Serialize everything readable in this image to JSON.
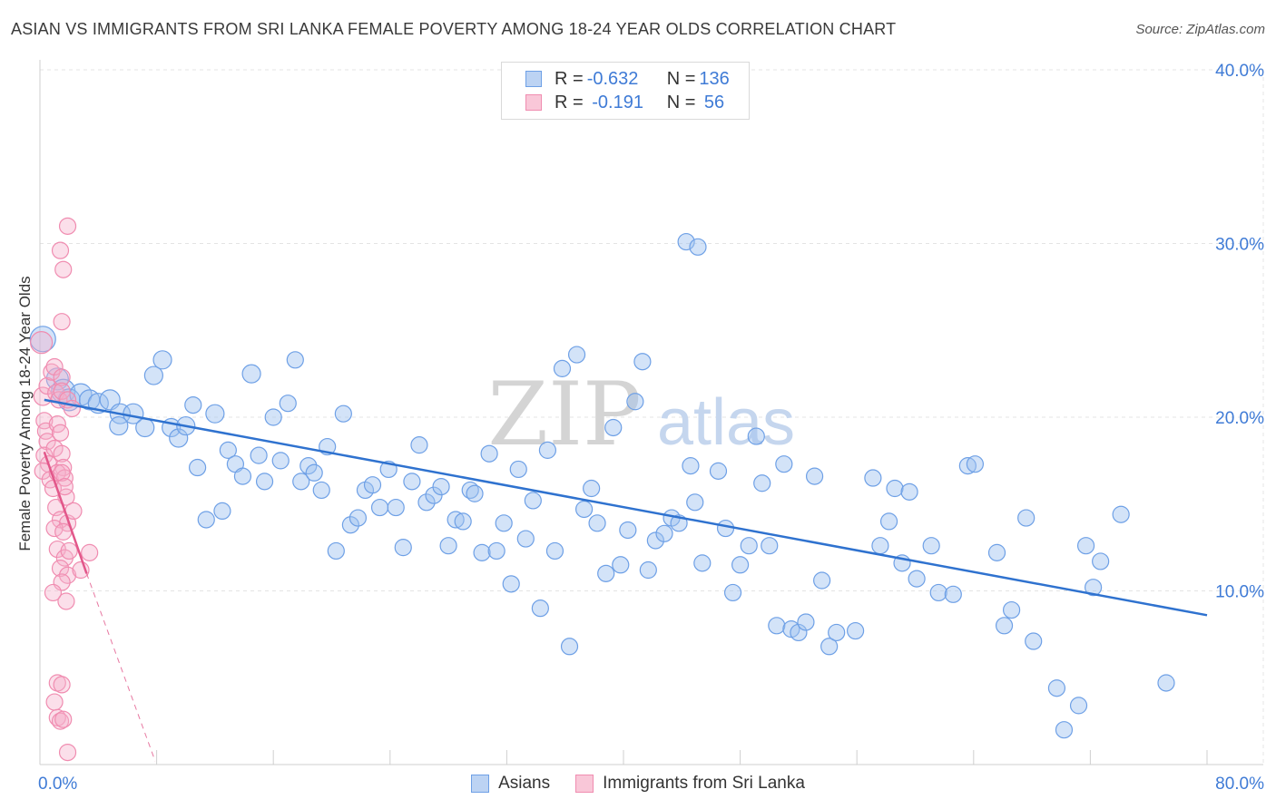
{
  "title": "ASIAN VS IMMIGRANTS FROM SRI LANKA FEMALE POVERTY AMONG 18-24 YEAR OLDS CORRELATION CHART",
  "source": "Source: ZipAtlas.com",
  "watermark": {
    "zip": "ZIP",
    "atlas": "atlas"
  },
  "legend": {
    "rows": [
      {
        "r_label": "R = ",
        "r_value": "-0.632",
        "n_label": "N = ",
        "n_value": "136"
      },
      {
        "r_label": "R = ",
        "r_value": " -0.191",
        "n_label": "N = ",
        "n_value": " 56"
      }
    ]
  },
  "chart_data": {
    "type": "scatter",
    "title": "ASIAN VS IMMIGRANTS FROM SRI LANKA FEMALE POVERTY AMONG 18-24 YEAR OLDS CORRELATION CHART",
    "xlabel": "",
    "ylabel": "Female Poverty Among 18-24 Year Olds",
    "xlim": [
      0,
      80
    ],
    "ylim": [
      0,
      40
    ],
    "x_tick_labels": [
      "0.0%",
      "80.0%"
    ],
    "y_tick_labels": [
      "10.0%",
      "20.0%",
      "30.0%",
      "40.0%"
    ],
    "y_ticks": [
      10,
      20,
      30,
      40
    ],
    "grid": true,
    "legend_position": "top-center",
    "colors": {
      "asians": "#6ea0e6",
      "sri_lanka": "#f08cb0",
      "asians_line": "#2f72cf",
      "sri_lanka_line": "#e2578a"
    },
    "series": [
      {
        "name": "Asians",
        "trend": {
          "x": [
            0.3,
            80
          ],
          "y": [
            21.0,
            8.6
          ]
        },
        "points": [
          {
            "x": 0.2,
            "y": 24.5,
            "s": 14
          },
          {
            "x": 1.2,
            "y": 22.2,
            "s": 12
          },
          {
            "x": 1.6,
            "y": 21.5,
            "s": 13
          },
          {
            "x": 2.0,
            "y": 21.0,
            "s": 12
          },
          {
            "x": 2.8,
            "y": 21.3,
            "s": 12
          },
          {
            "x": 3.4,
            "y": 21.0,
            "s": 11
          },
          {
            "x": 4.0,
            "y": 20.8,
            "s": 11
          },
          {
            "x": 4.8,
            "y": 21.0,
            "s": 11
          },
          {
            "x": 5.5,
            "y": 20.2,
            "s": 11
          },
          {
            "x": 6.4,
            "y": 20.2,
            "s": 11
          },
          {
            "x": 5.4,
            "y": 19.5,
            "s": 10
          },
          {
            "x": 7.2,
            "y": 19.4,
            "s": 10
          },
          {
            "x": 7.8,
            "y": 22.4,
            "s": 10
          },
          {
            "x": 8.4,
            "y": 23.3,
            "s": 10
          },
          {
            "x": 9.0,
            "y": 19.4,
            "s": 10
          },
          {
            "x": 9.5,
            "y": 18.8,
            "s": 10
          },
          {
            "x": 10.0,
            "y": 19.5,
            "s": 10
          },
          {
            "x": 10.5,
            "y": 20.7,
            "s": 9
          },
          {
            "x": 10.8,
            "y": 17.1,
            "s": 9
          },
          {
            "x": 11.4,
            "y": 14.1,
            "s": 9
          },
          {
            "x": 12.0,
            "y": 20.2,
            "s": 10
          },
          {
            "x": 12.5,
            "y": 14.6,
            "s": 9
          },
          {
            "x": 12.9,
            "y": 18.1,
            "s": 9
          },
          {
            "x": 13.4,
            "y": 17.3,
            "s": 9
          },
          {
            "x": 13.9,
            "y": 16.6,
            "s": 9
          },
          {
            "x": 14.5,
            "y": 22.5,
            "s": 10
          },
          {
            "x": 15.0,
            "y": 17.8,
            "s": 9
          },
          {
            "x": 15.4,
            "y": 16.3,
            "s": 9
          },
          {
            "x": 16.0,
            "y": 20.0,
            "s": 9
          },
          {
            "x": 16.5,
            "y": 17.5,
            "s": 9
          },
          {
            "x": 17.0,
            "y": 20.8,
            "s": 9
          },
          {
            "x": 17.5,
            "y": 23.3,
            "s": 9
          },
          {
            "x": 17.9,
            "y": 16.3,
            "s": 9
          },
          {
            "x": 18.4,
            "y": 17.2,
            "s": 9
          },
          {
            "x": 18.8,
            "y": 16.8,
            "s": 9
          },
          {
            "x": 19.3,
            "y": 15.8,
            "s": 9
          },
          {
            "x": 19.7,
            "y": 18.3,
            "s": 9
          },
          {
            "x": 20.3,
            "y": 12.3,
            "s": 9
          },
          {
            "x": 20.8,
            "y": 20.2,
            "s": 9
          },
          {
            "x": 21.3,
            "y": 13.8,
            "s": 9
          },
          {
            "x": 21.8,
            "y": 14.2,
            "s": 9
          },
          {
            "x": 22.3,
            "y": 15.8,
            "s": 9
          },
          {
            "x": 22.8,
            "y": 16.1,
            "s": 9
          },
          {
            "x": 23.3,
            "y": 14.8,
            "s": 9
          },
          {
            "x": 23.9,
            "y": 17.0,
            "s": 9
          },
          {
            "x": 24.4,
            "y": 14.8,
            "s": 9
          },
          {
            "x": 24.9,
            "y": 12.5,
            "s": 9
          },
          {
            "x": 25.5,
            "y": 16.3,
            "s": 9
          },
          {
            "x": 26.0,
            "y": 18.4,
            "s": 9
          },
          {
            "x": 26.5,
            "y": 15.1,
            "s": 9
          },
          {
            "x": 27.0,
            "y": 15.5,
            "s": 9
          },
          {
            "x": 27.5,
            "y": 16.0,
            "s": 9
          },
          {
            "x": 28.0,
            "y": 12.6,
            "s": 9
          },
          {
            "x": 28.5,
            "y": 14.1,
            "s": 9
          },
          {
            "x": 29.0,
            "y": 14.0,
            "s": 9
          },
          {
            "x": 29.5,
            "y": 15.8,
            "s": 9
          },
          {
            "x": 29.8,
            "y": 15.6,
            "s": 9
          },
          {
            "x": 30.3,
            "y": 12.2,
            "s": 9
          },
          {
            "x": 30.8,
            "y": 17.9,
            "s": 9
          },
          {
            "x": 31.3,
            "y": 12.3,
            "s": 9
          },
          {
            "x": 31.8,
            "y": 13.9,
            "s": 9
          },
          {
            "x": 32.3,
            "y": 10.4,
            "s": 9
          },
          {
            "x": 32.8,
            "y": 17.0,
            "s": 9
          },
          {
            "x": 33.3,
            "y": 13.0,
            "s": 9
          },
          {
            "x": 33.8,
            "y": 15.2,
            "s": 9
          },
          {
            "x": 34.3,
            "y": 9.0,
            "s": 9
          },
          {
            "x": 34.8,
            "y": 18.1,
            "s": 9
          },
          {
            "x": 35.3,
            "y": 12.3,
            "s": 9
          },
          {
            "x": 35.8,
            "y": 22.8,
            "s": 9
          },
          {
            "x": 36.3,
            "y": 6.8,
            "s": 9
          },
          {
            "x": 36.8,
            "y": 23.6,
            "s": 9
          },
          {
            "x": 37.3,
            "y": 14.7,
            "s": 9
          },
          {
            "x": 37.8,
            "y": 15.9,
            "s": 9
          },
          {
            "x": 38.2,
            "y": 13.9,
            "s": 9
          },
          {
            "x": 38.8,
            "y": 11.0,
            "s": 9
          },
          {
            "x": 39.3,
            "y": 19.4,
            "s": 9
          },
          {
            "x": 39.8,
            "y": 11.5,
            "s": 9
          },
          {
            "x": 40.3,
            "y": 13.5,
            "s": 9
          },
          {
            "x": 40.8,
            "y": 20.9,
            "s": 9
          },
          {
            "x": 41.3,
            "y": 23.2,
            "s": 9
          },
          {
            "x": 41.7,
            "y": 11.2,
            "s": 9
          },
          {
            "x": 42.2,
            "y": 12.9,
            "s": 9
          },
          {
            "x": 42.8,
            "y": 13.3,
            "s": 9
          },
          {
            "x": 43.3,
            "y": 14.2,
            "s": 9
          },
          {
            "x": 43.8,
            "y": 13.9,
            "s": 9
          },
          {
            "x": 44.3,
            "y": 30.1,
            "s": 9
          },
          {
            "x": 45.1,
            "y": 29.8,
            "s": 9
          },
          {
            "x": 44.6,
            "y": 17.2,
            "s": 9
          },
          {
            "x": 44.9,
            "y": 15.1,
            "s": 9
          },
          {
            "x": 45.4,
            "y": 11.6,
            "s": 9
          },
          {
            "x": 46.5,
            "y": 16.9,
            "s": 9
          },
          {
            "x": 47.0,
            "y": 13.6,
            "s": 9
          },
          {
            "x": 47.5,
            "y": 9.9,
            "s": 9
          },
          {
            "x": 48.0,
            "y": 11.5,
            "s": 9
          },
          {
            "x": 48.6,
            "y": 12.6,
            "s": 9
          },
          {
            "x": 49.1,
            "y": 18.9,
            "s": 9
          },
          {
            "x": 49.5,
            "y": 16.2,
            "s": 9
          },
          {
            "x": 50.0,
            "y": 12.6,
            "s": 9
          },
          {
            "x": 50.5,
            "y": 8.0,
            "s": 9
          },
          {
            "x": 51.0,
            "y": 17.3,
            "s": 9
          },
          {
            "x": 51.5,
            "y": 7.8,
            "s": 9
          },
          {
            "x": 52.0,
            "y": 7.6,
            "s": 9
          },
          {
            "x": 52.5,
            "y": 8.2,
            "s": 9
          },
          {
            "x": 53.1,
            "y": 16.6,
            "s": 9
          },
          {
            "x": 53.6,
            "y": 10.6,
            "s": 9
          },
          {
            "x": 54.1,
            "y": 6.8,
            "s": 9
          },
          {
            "x": 54.6,
            "y": 7.6,
            "s": 9
          },
          {
            "x": 55.9,
            "y": 7.7,
            "s": 9
          },
          {
            "x": 57.1,
            "y": 16.5,
            "s": 9
          },
          {
            "x": 57.6,
            "y": 12.6,
            "s": 9
          },
          {
            "x": 58.2,
            "y": 14.0,
            "s": 9
          },
          {
            "x": 58.6,
            "y": 15.9,
            "s": 9
          },
          {
            "x": 59.1,
            "y": 11.6,
            "s": 9
          },
          {
            "x": 59.6,
            "y": 15.7,
            "s": 9
          },
          {
            "x": 60.1,
            "y": 10.7,
            "s": 9
          },
          {
            "x": 61.1,
            "y": 12.6,
            "s": 9
          },
          {
            "x": 61.6,
            "y": 9.9,
            "s": 9
          },
          {
            "x": 62.6,
            "y": 9.8,
            "s": 9
          },
          {
            "x": 63.6,
            "y": 17.2,
            "s": 9
          },
          {
            "x": 64.1,
            "y": 17.3,
            "s": 9
          },
          {
            "x": 65.6,
            "y": 12.2,
            "s": 9
          },
          {
            "x": 66.1,
            "y": 8.0,
            "s": 9
          },
          {
            "x": 66.6,
            "y": 8.9,
            "s": 9
          },
          {
            "x": 67.6,
            "y": 14.2,
            "s": 9
          },
          {
            "x": 68.1,
            "y": 7.1,
            "s": 9
          },
          {
            "x": 69.7,
            "y": 4.4,
            "s": 9
          },
          {
            "x": 70.2,
            "y": 2.0,
            "s": 9
          },
          {
            "x": 71.2,
            "y": 3.4,
            "s": 9
          },
          {
            "x": 71.7,
            "y": 12.6,
            "s": 9
          },
          {
            "x": 72.2,
            "y": 10.2,
            "s": 9
          },
          {
            "x": 72.7,
            "y": 11.7,
            "s": 9
          },
          {
            "x": 74.1,
            "y": 14.4,
            "s": 9
          },
          {
            "x": 77.2,
            "y": 4.7,
            "s": 9
          }
        ]
      },
      {
        "name": "Immigrants from Sri Lanka",
        "trend": {
          "x": [
            0.3,
            3.2
          ],
          "y": [
            18.0,
            11.0
          ]
        },
        "trend_extension": {
          "x": [
            3.2,
            7.9
          ],
          "y": [
            11.0,
            0.2
          ]
        },
        "points": [
          {
            "x": 0.1,
            "y": 24.3,
            "s": 12
          },
          {
            "x": 0.2,
            "y": 21.2,
            "s": 10
          },
          {
            "x": 0.3,
            "y": 19.8,
            "s": 9
          },
          {
            "x": 0.4,
            "y": 19.2,
            "s": 9
          },
          {
            "x": 0.5,
            "y": 18.6,
            "s": 9
          },
          {
            "x": 0.3,
            "y": 17.8,
            "s": 9
          },
          {
            "x": 0.6,
            "y": 17.3,
            "s": 9
          },
          {
            "x": 0.2,
            "y": 16.9,
            "s": 9
          },
          {
            "x": 0.7,
            "y": 16.4,
            "s": 9
          },
          {
            "x": 0.5,
            "y": 21.8,
            "s": 9
          },
          {
            "x": 0.8,
            "y": 22.6,
            "s": 9
          },
          {
            "x": 1.0,
            "y": 22.9,
            "s": 9
          },
          {
            "x": 1.1,
            "y": 21.4,
            "s": 9
          },
          {
            "x": 1.3,
            "y": 21.0,
            "s": 9
          },
          {
            "x": 1.2,
            "y": 19.6,
            "s": 9
          },
          {
            "x": 1.4,
            "y": 19.1,
            "s": 9
          },
          {
            "x": 1.0,
            "y": 18.2,
            "s": 9
          },
          {
            "x": 1.5,
            "y": 17.9,
            "s": 9
          },
          {
            "x": 1.6,
            "y": 17.1,
            "s": 9
          },
          {
            "x": 1.2,
            "y": 16.8,
            "s": 9
          },
          {
            "x": 1.7,
            "y": 16.5,
            "s": 9
          },
          {
            "x": 0.9,
            "y": 15.9,
            "s": 9
          },
          {
            "x": 1.8,
            "y": 15.4,
            "s": 9
          },
          {
            "x": 1.1,
            "y": 14.8,
            "s": 9
          },
          {
            "x": 1.4,
            "y": 14.1,
            "s": 9
          },
          {
            "x": 1.9,
            "y": 13.9,
            "s": 9
          },
          {
            "x": 1.0,
            "y": 13.6,
            "s": 9
          },
          {
            "x": 1.6,
            "y": 13.4,
            "s": 9
          },
          {
            "x": 1.2,
            "y": 12.4,
            "s": 9
          },
          {
            "x": 1.7,
            "y": 11.9,
            "s": 9
          },
          {
            "x": 1.4,
            "y": 11.3,
            "s": 9
          },
          {
            "x": 1.9,
            "y": 10.9,
            "s": 9
          },
          {
            "x": 1.5,
            "y": 10.5,
            "s": 9
          },
          {
            "x": 1.8,
            "y": 9.4,
            "s": 9
          },
          {
            "x": 0.9,
            "y": 9.9,
            "s": 9
          },
          {
            "x": 1.4,
            "y": 29.6,
            "s": 9
          },
          {
            "x": 1.5,
            "y": 22.3,
            "s": 9
          },
          {
            "x": 1.6,
            "y": 28.5,
            "s": 9
          },
          {
            "x": 1.5,
            "y": 25.5,
            "s": 9
          },
          {
            "x": 1.5,
            "y": 21.5,
            "s": 9
          },
          {
            "x": 1.9,
            "y": 31.0,
            "s": 9
          },
          {
            "x": 1.9,
            "y": 21.0,
            "s": 9
          },
          {
            "x": 2.2,
            "y": 20.5,
            "s": 9
          },
          {
            "x": 1.5,
            "y": 16.8,
            "s": 9
          },
          {
            "x": 1.7,
            "y": 16.0,
            "s": 9
          },
          {
            "x": 2.3,
            "y": 14.6,
            "s": 9
          },
          {
            "x": 2.0,
            "y": 12.3,
            "s": 9
          },
          {
            "x": 2.8,
            "y": 11.2,
            "s": 9
          },
          {
            "x": 3.4,
            "y": 12.2,
            "s": 9
          },
          {
            "x": 1.2,
            "y": 4.7,
            "s": 9
          },
          {
            "x": 1.5,
            "y": 4.6,
            "s": 9
          },
          {
            "x": 1.0,
            "y": 3.6,
            "s": 9
          },
          {
            "x": 1.2,
            "y": 2.7,
            "s": 9
          },
          {
            "x": 1.4,
            "y": 2.5,
            "s": 9
          },
          {
            "x": 1.6,
            "y": 2.6,
            "s": 9
          },
          {
            "x": 1.9,
            "y": 0.7,
            "s": 9
          }
        ]
      }
    ]
  },
  "bottom_legend": [
    {
      "label": "Asians"
    },
    {
      "label": "Immigrants from Sri Lanka"
    }
  ]
}
